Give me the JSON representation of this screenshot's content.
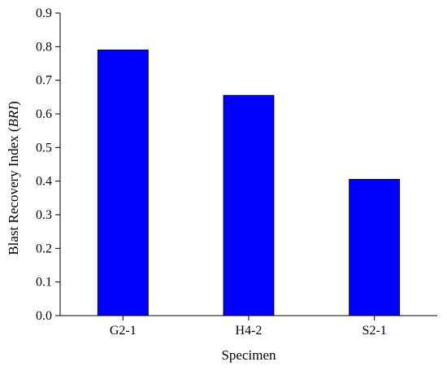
{
  "chart_data": {
    "type": "bar",
    "categories": [
      "G2-1",
      "H4-2",
      "S2-1"
    ],
    "values": [
      0.79,
      0.655,
      0.405
    ],
    "series": [
      {
        "values": [
          0.79,
          0.655,
          0.405
        ],
        "color": "#0000ff"
      }
    ],
    "xlabel": "Specimen",
    "ylabel_main": "Blast Recovery Index (",
    "ylabel_italic": "BRI",
    "ylabel_end": ")",
    "ylim": [
      0,
      0.9
    ],
    "yticks": [
      "0.0",
      "0.1",
      "0.2",
      "0.3",
      "0.4",
      "0.5",
      "0.6",
      "0.7",
      "0.8",
      "0.9"
    ],
    "grid": false,
    "legend": "none"
  }
}
